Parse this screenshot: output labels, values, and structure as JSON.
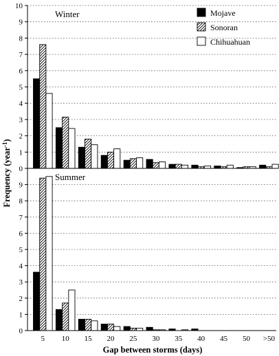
{
  "chart_data": {
    "type": "bar",
    "ylabel": "Frequency (year-1)",
    "ylabel_main": "Frequency (year",
    "ylabel_sup": "-1",
    "ylabel_close": ")",
    "xlabel": "Gap between storms (days)",
    "categories": [
      "5",
      "10",
      "15",
      "20",
      "25",
      "30",
      "35",
      "40",
      "45",
      "50",
      ">50"
    ],
    "legend": {
      "placement": "top-right",
      "entries": [
        {
          "name": "Mojave",
          "fill": "#000000"
        },
        {
          "name": "Sonoran",
          "fill": "hatch"
        },
        {
          "name": "Chihuahuan",
          "fill": "#ffffff"
        }
      ]
    },
    "panels": [
      {
        "title": "Winter",
        "ylim": [
          0,
          10
        ],
        "yticks": [
          0,
          1,
          2,
          3,
          4,
          5,
          6,
          7,
          8,
          9,
          10
        ],
        "grid": true,
        "series": [
          {
            "name": "Mojave",
            "values": [
              5.5,
              2.5,
              1.3,
              0.8,
              0.5,
              0.55,
              0.25,
              0.2,
              0.15,
              0.05,
              0.2
            ]
          },
          {
            "name": "Sonoran",
            "values": [
              7.6,
              3.15,
              1.8,
              1.0,
              0.6,
              0.35,
              0.25,
              0.1,
              0.1,
              0.1,
              0.1
            ]
          },
          {
            "name": "Chihuahuan",
            "values": [
              4.6,
              2.45,
              1.45,
              1.2,
              0.65,
              0.4,
              0.2,
              0.15,
              0.2,
              0.1,
              0.25
            ]
          }
        ]
      },
      {
        "title": "Summer",
        "ylim": [
          0,
          10
        ],
        "yticks": [
          0,
          1,
          2,
          3,
          4,
          5,
          6,
          7,
          8,
          9
        ],
        "grid": true,
        "series": [
          {
            "name": "Mojave",
            "values": [
              3.6,
              1.3,
              0.7,
              0.4,
              0.25,
              0.2,
              0.1,
              0.1,
              0.0,
              0.0,
              0.0
            ]
          },
          {
            "name": "Sonoran",
            "values": [
              9.4,
              1.7,
              0.7,
              0.4,
              0.15,
              0.05,
              0.0,
              0.0,
              0.0,
              0.0,
              0.0
            ]
          },
          {
            "name": "Chihuahuan",
            "values": [
              9.5,
              2.5,
              0.6,
              0.25,
              0.15,
              0.05,
              0.05,
              0.0,
              0.0,
              0.0,
              0.0
            ]
          }
        ]
      }
    ]
  }
}
